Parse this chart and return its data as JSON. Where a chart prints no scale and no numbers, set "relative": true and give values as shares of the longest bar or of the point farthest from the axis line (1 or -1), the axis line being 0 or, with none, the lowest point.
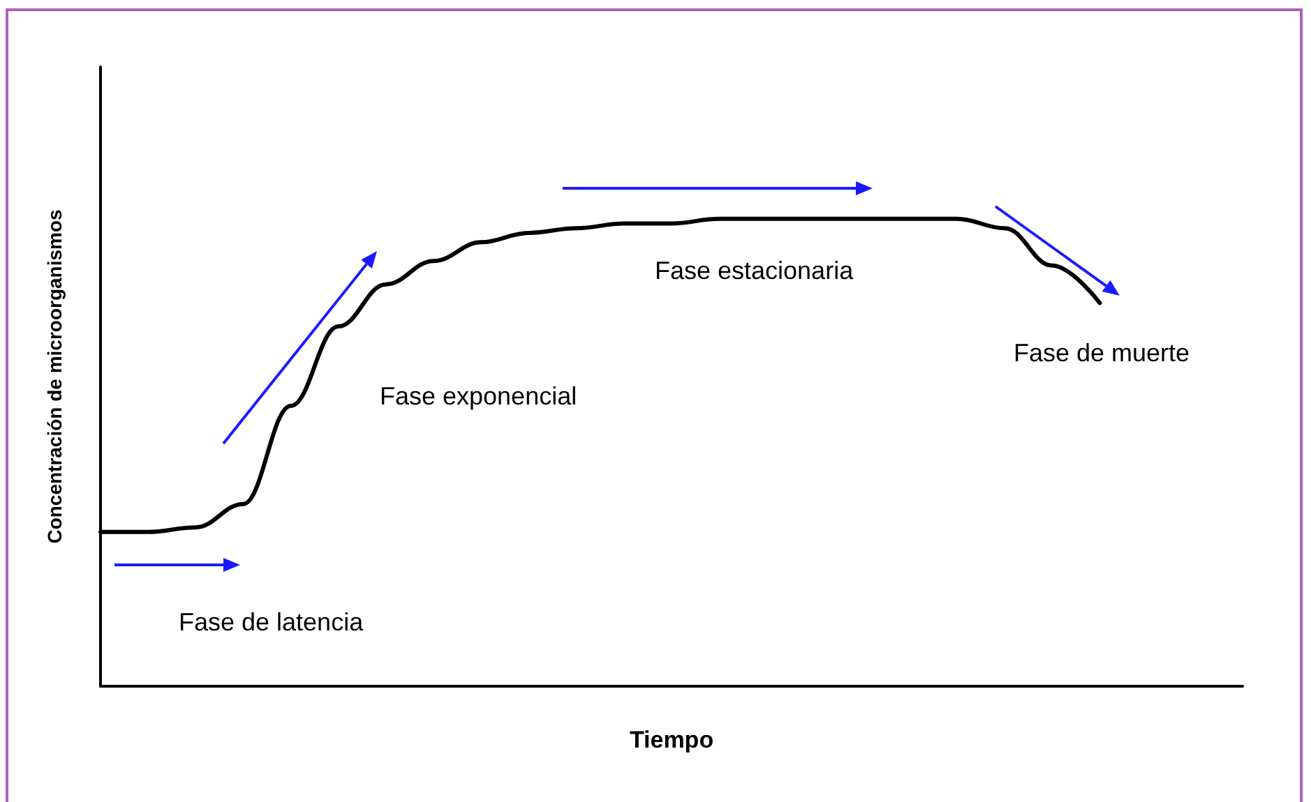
{
  "chart_data": {
    "type": "line",
    "relative": true,
    "xlabel": "Tiempo",
    "ylabel": "Concentración de microorganismos",
    "categories": [
      null,
      null,
      null,
      null,
      null,
      null,
      null,
      null,
      null,
      null,
      null,
      null,
      null,
      null,
      null,
      null,
      null,
      null,
      null,
      null,
      null,
      null,
      null,
      null,
      null
    ],
    "series": [
      {
        "color": "#000000",
        "values": [
          0.33,
          0.33,
          0.34,
          0.39,
          0.6,
          0.77,
          0.86,
          0.91,
          0.95,
          0.97,
          0.98,
          0.99,
          0.99,
          1,
          1,
          1,
          1,
          1,
          1,
          0.98,
          0.9,
          0.82,
          null,
          null,
          null
        ]
      }
    ],
    "annotations": [
      "Fase de latencia",
      "Fase exponencial",
      "Fase estacionaria",
      "Fase de muerte"
    ],
    "grid": false,
    "marker": "none",
    "line_style": "solid"
  }
}
